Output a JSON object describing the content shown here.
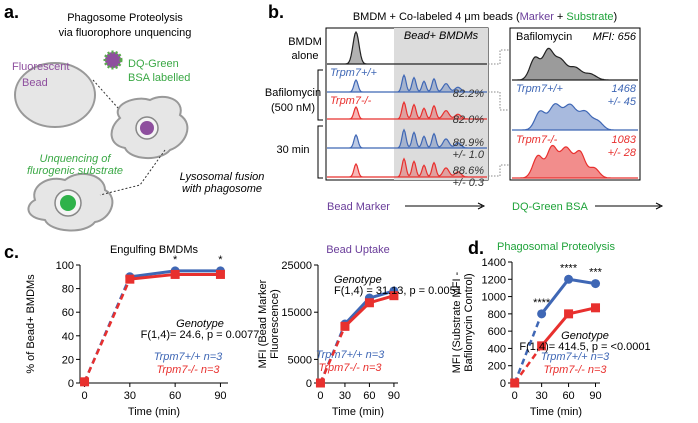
{
  "panel_a": {
    "label": "a.",
    "title": [
      "Phagosome Proteolysis",
      "via fluorophore unquencing"
    ],
    "bead": [
      "Fluorescent",
      "Bead"
    ],
    "bsa": [
      "DQ-Green",
      "BSA labelled"
    ],
    "unquencing": [
      "Unquencing of",
      "flurogenic substrate"
    ],
    "fusion": [
      "Lysosomal fusion",
      "with phagosome"
    ]
  },
  "panel_b": {
    "label": "b.",
    "title": [
      "BMDM + Co-labeled 4 μm beads (",
      "Marker",
      " + ",
      "Substrate",
      ")"
    ],
    "rows": [
      "BMDM",
      "alone",
      "Bafilomycin",
      "(500 nM)",
      "30 min"
    ],
    "gate": "Bead+ BMDMs",
    "genotypes": [
      "Trpm7+/+",
      "Trpm7-/-",
      "Trpm7+/+",
      "Trpm7-/-"
    ],
    "percents": [
      "82.2%",
      "82.0%",
      "89.9%",
      "+/- 1.0",
      "88.6%",
      "+/- 0.3"
    ],
    "x_left": "Bead Marker",
    "x_right": "DQ-Green BSA",
    "right_title": "Bafilomycin",
    "right_mfi": "MFI: 656",
    "right_labels": [
      "Trpm7+/+",
      "1468",
      "+/- 45",
      "Trpm7-/-",
      "1083",
      "+/- 28"
    ]
  },
  "panel_c": {
    "label": "c."
  },
  "panel_d": {
    "label": "d."
  },
  "chart_data": [
    {
      "type": "line",
      "title": "Engulfing BMDMs",
      "title_color": "#000000",
      "ylabel": [
        "% of Bead+ BMDMs"
      ],
      "xlabel": "Time (min)",
      "x": [
        0,
        30,
        60,
        90
      ],
      "xlim": [
        -3,
        95
      ],
      "xticks": [
        0,
        30,
        60,
        90
      ],
      "ylim": [
        0,
        100
      ],
      "yticks": [
        0,
        20,
        40,
        60,
        80,
        100
      ],
      "series": [
        {
          "name": "Trpm7+/+ n=3",
          "color": "#3f67b5",
          "marker": "circle",
          "values": [
            1,
            90,
            95,
            95
          ]
        },
        {
          "name": "Trpm7-/- n=3",
          "color": "#e8302e",
          "marker": "square",
          "values": [
            1,
            88,
            92,
            92
          ]
        }
      ],
      "significance": [
        null,
        null,
        "*",
        "*"
      ],
      "stats_title": "Genotype",
      "stats": "F(1,4)= 24.6, p = 0.0077",
      "legend": "lower right"
    },
    {
      "type": "line",
      "title": "Bead Uptake",
      "title_color": "#6a3d9a",
      "ylabel": [
        "MFI (Bead Marker",
        "Fluorescence)"
      ],
      "xlabel": "Time (min)",
      "x": [
        0,
        30,
        60,
        90
      ],
      "xlim": [
        -3,
        95
      ],
      "xticks": [
        0,
        30,
        60,
        90
      ],
      "ylim": [
        0,
        25000
      ],
      "yticks": [
        0,
        5000,
        15000,
        25000
      ],
      "series": [
        {
          "name": "Trpm7+/+ n=3",
          "color": "#3f67b5",
          "marker": "circle",
          "values": [
            0,
            12500,
            18000,
            19500
          ]
        },
        {
          "name": "Trpm7-/- n=3",
          "color": "#e8302e",
          "marker": "square",
          "values": [
            0,
            12000,
            17000,
            18500
          ]
        }
      ],
      "stats_title": "Genotype",
      "stats": "F(1,4) = 31.13, p = 0.0051",
      "legend": "lower right"
    },
    {
      "type": "line",
      "title": "Phagosomal Proteolysis",
      "title_color": "#1fa33a",
      "ylabel": [
        "MFI (Substrate MFI -",
        "Bafilomycin Control)"
      ],
      "xlabel": "Time (min)",
      "x": [
        0,
        30,
        60,
        90
      ],
      "xlim": [
        -3,
        95
      ],
      "xticks": [
        0,
        30,
        60,
        90
      ],
      "ylim": [
        0,
        1400
      ],
      "yticks": [
        0,
        200,
        400,
        600,
        800,
        1000,
        1200,
        1400
      ],
      "series": [
        {
          "name": "Trpm7+/+ n=3",
          "color": "#3f67b5",
          "marker": "circle",
          "values": [
            0,
            800,
            1200,
            1150
          ]
        },
        {
          "name": "Trpm7-/- n=3",
          "color": "#e8302e",
          "marker": "square",
          "values": [
            0,
            430,
            800,
            870
          ]
        }
      ],
      "significance": [
        null,
        "****",
        "****",
        "***"
      ],
      "stats_title": "Genotype",
      "stats": "F(1,4)= 414.5, p = <0.0001",
      "legend": "lower right"
    }
  ]
}
